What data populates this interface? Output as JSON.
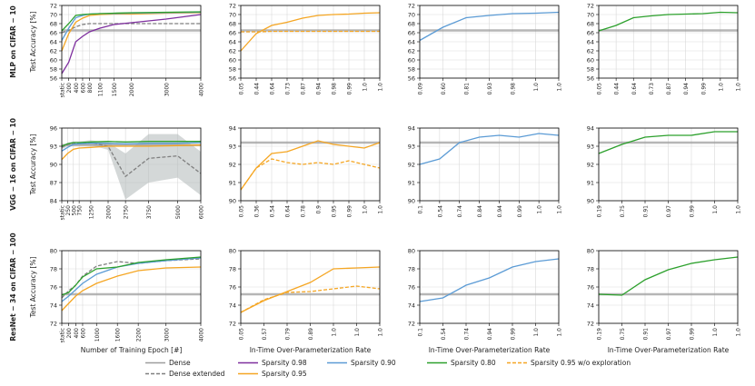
{
  "figure": {
    "row_labels": [
      "MLP on CIFAR − 10",
      "VGG − 16 on CIFAR − 10",
      "ResNet − 34 on CIFAR − 100"
    ],
    "y_label": "Test Accuracy [%]",
    "col_xlabels": [
      "Number of Training Epoch [#]",
      "In-Time Over-Parameterization Rate",
      "In-Time Over-Parameterization Rate",
      "In-Time Over-Parameterization Rate"
    ],
    "legend": [
      {
        "label": "Dense",
        "color": "#9e9e9e",
        "dash": "solid"
      },
      {
        "label": "Dense extended",
        "color": "#7f7f7f",
        "dash": "dashed"
      },
      {
        "label": "Sparsity 0.98",
        "color": "#7e2f9e",
        "dash": "solid"
      },
      {
        "label": "Sparsity 0.95",
        "color": "#f5a623",
        "dash": "solid"
      },
      {
        "label": "Sparsity 0.90",
        "color": "#5b9bd5",
        "dash": "solid"
      },
      {
        "label": "Sparsity 0.80",
        "color": "#2ca02c",
        "dash": "solid"
      },
      {
        "label": "Sparsity 0.95 w/o exploration",
        "color": "#f5a623",
        "dash": "dashed"
      }
    ]
  },
  "chart_data": [
    {
      "type": "line",
      "row": 0,
      "col": 0,
      "x": [
        "static",
        "200",
        "400",
        "600",
        "800",
        "1100",
        "1500",
        "2000",
        "3000",
        "4000"
      ],
      "x_values": [
        0,
        200,
        400,
        600,
        800,
        1100,
        1500,
        2000,
        3000,
        4000
      ],
      "ylim": [
        56,
        72
      ],
      "yticks": [
        56,
        58,
        60,
        62,
        64,
        66,
        68,
        70,
        72
      ],
      "series": [
        {
          "name": "Dense",
          "values": [
            66.5,
            66.5,
            66.5,
            66.5,
            66.5,
            66.5,
            66.5,
            66.5,
            66.5,
            66.5
          ]
        },
        {
          "name": "Dense extended",
          "values": [
            66.0,
            66.5,
            67.3,
            67.8,
            68.0,
            68.0,
            68.0,
            68.0,
            68.0,
            68.0
          ]
        },
        {
          "name": "Sparsity 0.98",
          "values": [
            57.0,
            59.5,
            64.0,
            65.2,
            66.2,
            67.0,
            67.8,
            68.2,
            69.0,
            70.0
          ]
        },
        {
          "name": "Sparsity 0.95",
          "values": [
            62.0,
            65.8,
            68.3,
            69.2,
            69.8,
            70.0,
            70.1,
            70.1,
            70.3,
            70.4
          ]
        },
        {
          "name": "Sparsity 0.90",
          "values": [
            64.3,
            67.0,
            69.3,
            69.8,
            70.1,
            70.2,
            70.2,
            70.3,
            70.4,
            70.5
          ]
        },
        {
          "name": "Sparsity 0.80",
          "values": [
            66.4,
            68.0,
            69.8,
            70.0,
            70.1,
            70.2,
            70.3,
            70.4,
            70.5,
            70.6
          ]
        }
      ]
    },
    {
      "type": "line",
      "row": 0,
      "col": 1,
      "x": [
        "0.05",
        "0.44",
        "0.64",
        "0.73",
        "0.87",
        "0.94",
        "0.98",
        "0.99",
        "1.0",
        "1.0"
      ],
      "ylim": [
        56,
        72
      ],
      "yticks": [
        56,
        58,
        60,
        62,
        64,
        66,
        68,
        70,
        72
      ],
      "series": [
        {
          "name": "Dense",
          "values": [
            66.5,
            66.5,
            66.5,
            66.5,
            66.5,
            66.5,
            66.5,
            66.5,
            66.5,
            66.5
          ]
        },
        {
          "name": "Sparsity 0.95",
          "values": [
            62.0,
            65.8,
            67.6,
            68.3,
            69.2,
            69.8,
            70.0,
            70.1,
            70.3,
            70.4
          ]
        },
        {
          "name": "Sparsity 0.95 w/o exploration",
          "values": [
            66.2,
            66.2,
            66.3,
            66.3,
            66.3,
            66.3,
            66.3,
            66.3,
            66.3,
            66.3
          ]
        }
      ]
    },
    {
      "type": "line",
      "row": 0,
      "col": 2,
      "x": [
        "0.09",
        "0.60",
        "0.81",
        "0.93",
        "0.98",
        "1.0",
        "1.0"
      ],
      "ylim": [
        56,
        72
      ],
      "yticks": [
        56,
        58,
        60,
        62,
        64,
        66,
        68,
        70,
        72
      ],
      "series": [
        {
          "name": "Dense",
          "values": [
            66.5,
            66.5,
            66.5,
            66.5,
            66.5,
            66.5,
            66.5
          ]
        },
        {
          "name": "Sparsity 0.90",
          "values": [
            64.3,
            67.2,
            69.3,
            69.8,
            70.2,
            70.3,
            70.5
          ]
        }
      ]
    },
    {
      "type": "line",
      "row": 0,
      "col": 3,
      "x": [
        "0.05",
        "0.44",
        "0.64",
        "0.73",
        "0.87",
        "0.94",
        "0.99",
        "1.0",
        "1.0"
      ],
      "ylim": [
        56,
        72
      ],
      "yticks": [
        56,
        58,
        60,
        62,
        64,
        66,
        68,
        70,
        72
      ],
      "series": [
        {
          "name": "Dense",
          "values": [
            66.5,
            66.5,
            66.5,
            66.5,
            66.5,
            66.5,
            66.5,
            66.5,
            66.5
          ]
        },
        {
          "name": "Sparsity 0.80",
          "values": [
            66.4,
            67.6,
            69.3,
            69.7,
            70.0,
            70.1,
            70.2,
            70.5,
            70.4
          ]
        }
      ]
    },
    {
      "type": "line",
      "row": 1,
      "col": 0,
      "x": [
        "static",
        "250",
        "500",
        "750",
        "1250",
        "2000",
        "2750",
        "3750",
        "5000",
        "6000"
      ],
      "x_values": [
        0,
        250,
        500,
        750,
        1250,
        2000,
        2750,
        3750,
        5000,
        6000
      ],
      "ylim": [
        84,
        96
      ],
      "yticks": [
        84,
        87,
        90,
        93,
        96
      ],
      "series": [
        {
          "name": "Dense",
          "values": [
            93.2,
            93.2,
            93.2,
            93.2,
            93.2,
            93.2,
            93.2,
            93.2,
            93.2,
            93.2
          ]
        },
        {
          "name": "Dense extended",
          "values": [
            92.8,
            93.3,
            93.5,
            93.5,
            93.6,
            93.0,
            88.0,
            91.0,
            91.4,
            88.5
          ]
        },
        {
          "name": "Sparsity 0.95",
          "values": [
            90.8,
            91.8,
            92.5,
            92.7,
            92.8,
            93.0,
            93.0,
            93.0,
            93.1,
            93.2
          ]
        },
        {
          "name": "Sparsity 0.90",
          "values": [
            92.2,
            92.8,
            93.3,
            93.4,
            93.5,
            93.5,
            93.4,
            93.5,
            93.5,
            93.6
          ]
        },
        {
          "name": "Sparsity 0.80",
          "values": [
            93.0,
            93.4,
            93.6,
            93.6,
            93.7,
            93.8,
            93.7,
            93.8,
            93.8,
            93.8
          ]
        }
      ]
    },
    {
      "type": "line",
      "row": 1,
      "col": 1,
      "x": [
        "0.05",
        "0.36",
        "0.54",
        "0.64",
        "0.78",
        "0.9",
        "0.95",
        "0.99",
        "1.0",
        "1.0"
      ],
      "ylim": [
        90,
        94
      ],
      "yticks": [
        90,
        91,
        92,
        93,
        94
      ],
      "series": [
        {
          "name": "Dense",
          "values": [
            93.2,
            93.2,
            93.2,
            93.2,
            93.2,
            93.2,
            93.2,
            93.2,
            93.2,
            93.2
          ]
        },
        {
          "name": "Sparsity 0.95",
          "values": [
            90.6,
            91.8,
            92.6,
            92.7,
            93.0,
            93.3,
            93.1,
            93.0,
            92.9,
            93.2
          ]
        },
        {
          "name": "Sparsity 0.95 w/o exploration",
          "values": [
            90.6,
            91.8,
            92.3,
            92.1,
            92.0,
            92.1,
            92.0,
            92.2,
            92.0,
            91.8
          ]
        }
      ]
    },
    {
      "type": "line",
      "row": 1,
      "col": 2,
      "x": [
        "0.1",
        "0.54",
        "0.74",
        "0.84",
        "0.94",
        "0.99",
        "1.0",
        "1.0"
      ],
      "ylim": [
        90,
        94
      ],
      "yticks": [
        90,
        91,
        92,
        93,
        94
      ],
      "series": [
        {
          "name": "Dense",
          "values": [
            93.2,
            93.2,
            93.2,
            93.2,
            93.2,
            93.2,
            93.2,
            93.2
          ]
        },
        {
          "name": "Sparsity 0.90",
          "values": [
            92.0,
            92.3,
            93.2,
            93.5,
            93.6,
            93.5,
            93.7,
            93.6
          ]
        }
      ]
    },
    {
      "type": "line",
      "row": 1,
      "col": 3,
      "x": [
        "0.19",
        "0.75",
        "0.91",
        "0.97",
        "0.99",
        "1.0",
        "1.0"
      ],
      "ylim": [
        90,
        94
      ],
      "yticks": [
        90,
        91,
        92,
        93,
        94
      ],
      "series": [
        {
          "name": "Dense",
          "values": [
            93.2,
            93.2,
            93.2,
            93.2,
            93.2,
            93.2,
            93.2
          ]
        },
        {
          "name": "Sparsity 0.80",
          "values": [
            92.6,
            93.1,
            93.5,
            93.6,
            93.6,
            93.8,
            93.8
          ]
        }
      ]
    },
    {
      "type": "line",
      "row": 2,
      "col": 0,
      "x": [
        "static",
        "200",
        "400",
        "600",
        "1000",
        "1600",
        "2200",
        "3000",
        "4000"
      ],
      "x_values": [
        0,
        200,
        400,
        600,
        1000,
        1600,
        2200,
        3000,
        4000
      ],
      "ylim": [
        72,
        80
      ],
      "yticks": [
        72,
        74,
        76,
        78,
        80
      ],
      "series": [
        {
          "name": "Dense",
          "values": [
            75.2,
            75.2,
            75.2,
            75.2,
            75.2,
            75.2,
            75.2,
            75.2,
            75.2
          ]
        },
        {
          "name": "Dense extended",
          "values": [
            74.8,
            75.6,
            76.2,
            77.2,
            78.3,
            78.8,
            78.6,
            78.9,
            79.1
          ]
        },
        {
          "name": "Sparsity 0.95",
          "values": [
            73.4,
            74.2,
            75.0,
            75.6,
            76.4,
            77.2,
            77.8,
            78.1,
            78.2
          ]
        },
        {
          "name": "Sparsity 0.90",
          "values": [
            74.4,
            75.0,
            75.7,
            76.4,
            77.4,
            78.2,
            78.6,
            78.9,
            79.2
          ]
        },
        {
          "name": "Sparsity 0.80",
          "values": [
            75.1,
            75.4,
            76.2,
            77.1,
            78.0,
            78.2,
            78.7,
            79.0,
            79.3
          ]
        }
      ]
    },
    {
      "type": "line",
      "row": 2,
      "col": 1,
      "x": [
        "0.05",
        "0.57",
        "0.79",
        "0.89",
        "1.0",
        "1.0",
        "1.0"
      ],
      "ylim": [
        72,
        80
      ],
      "yticks": [
        72,
        74,
        76,
        78,
        80
      ],
      "series": [
        {
          "name": "Dense",
          "values": [
            75.2,
            75.2,
            75.2,
            75.2,
            75.2,
            75.2,
            75.2
          ]
        },
        {
          "name": "Sparsity 0.95",
          "values": [
            73.2,
            74.5,
            75.5,
            76.5,
            78.0,
            78.1,
            78.2
          ]
        },
        {
          "name": "Sparsity 0.95 w/o exploration",
          "values": [
            73.2,
            74.6,
            75.4,
            75.5,
            75.8,
            76.1,
            75.8
          ]
        }
      ]
    },
    {
      "type": "line",
      "row": 2,
      "col": 2,
      "x": [
        "0.1",
        "0.54",
        "0.74",
        "0.94",
        "0.99",
        "1.0",
        "1.0"
      ],
      "ylim": [
        72,
        80
      ],
      "yticks": [
        72,
        74,
        76,
        78,
        80
      ],
      "series": [
        {
          "name": "Dense",
          "values": [
            75.2,
            75.2,
            75.2,
            75.2,
            75.2,
            75.2,
            75.2
          ]
        },
        {
          "name": "Sparsity 0.90",
          "values": [
            74.4,
            74.8,
            76.2,
            77.0,
            78.2,
            78.8,
            79.1
          ]
        }
      ]
    },
    {
      "type": "line",
      "row": 2,
      "col": 3,
      "x": [
        "0.19",
        "0.75",
        "0.91",
        "0.97",
        "0.99",
        "1.0",
        "1.0"
      ],
      "ylim": [
        72,
        80
      ],
      "yticks": [
        72,
        74,
        76,
        78,
        80
      ],
      "series": [
        {
          "name": "Dense",
          "values": [
            75.2,
            75.2,
            75.2,
            75.2,
            75.2,
            75.2,
            75.2
          ]
        },
        {
          "name": "Sparsity 0.80",
          "values": [
            75.2,
            75.1,
            76.8,
            77.9,
            78.6,
            79.0,
            79.3
          ]
        }
      ]
    }
  ]
}
